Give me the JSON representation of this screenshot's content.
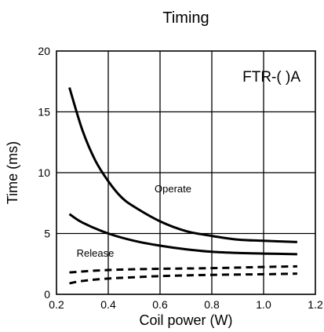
{
  "chart_data": {
    "type": "line",
    "title": "Timing",
    "xlabel": "Coil power (W)",
    "ylabel": "Time (ms)",
    "xlim": [
      0.2,
      1.2
    ],
    "ylim": [
      0,
      20
    ],
    "xticks": [
      0.2,
      0.4,
      0.6,
      0.8,
      1.0,
      1.2
    ],
    "xtick_labels": [
      "0.2",
      "0.4",
      "0.6",
      "0.8",
      "1.0",
      "1.2"
    ],
    "yticks": [
      0,
      5,
      10,
      15,
      20
    ],
    "ytick_labels": [
      "0",
      "5",
      "10",
      "15",
      "20"
    ],
    "grid": true,
    "legend": "none",
    "model_label": "FTR-( )A",
    "annotations": [
      {
        "text": "Operate",
        "x": 0.65,
        "y": 8.4
      },
      {
        "text": "Release",
        "x": 0.35,
        "y": 3.1
      }
    ],
    "series": [
      {
        "style": "solid",
        "x": [
          0.25,
          0.3,
          0.35,
          0.4,
          0.45,
          0.5,
          0.6,
          0.7,
          0.8,
          0.9,
          1.0,
          1.13
        ],
        "y": [
          17.0,
          13.5,
          11.0,
          9.3,
          8.0,
          7.2,
          6.0,
          5.2,
          4.8,
          4.5,
          4.4,
          4.3
        ]
      },
      {
        "style": "solid",
        "x": [
          0.25,
          0.3,
          0.4,
          0.5,
          0.6,
          0.7,
          0.8,
          0.9,
          1.0,
          1.13
        ],
        "y": [
          6.6,
          5.9,
          5.0,
          4.4,
          4.0,
          3.7,
          3.5,
          3.4,
          3.35,
          3.3
        ]
      },
      {
        "style": "dashed",
        "x": [
          0.25,
          0.4,
          0.6,
          0.8,
          1.0,
          1.13
        ],
        "y": [
          1.8,
          2.0,
          2.1,
          2.15,
          2.25,
          2.3
        ]
      },
      {
        "style": "dashed",
        "x": [
          0.25,
          0.3,
          0.4,
          0.5,
          0.6,
          0.8,
          1.0,
          1.13
        ],
        "y": [
          0.9,
          1.1,
          1.3,
          1.4,
          1.5,
          1.6,
          1.65,
          1.7
        ]
      }
    ]
  }
}
